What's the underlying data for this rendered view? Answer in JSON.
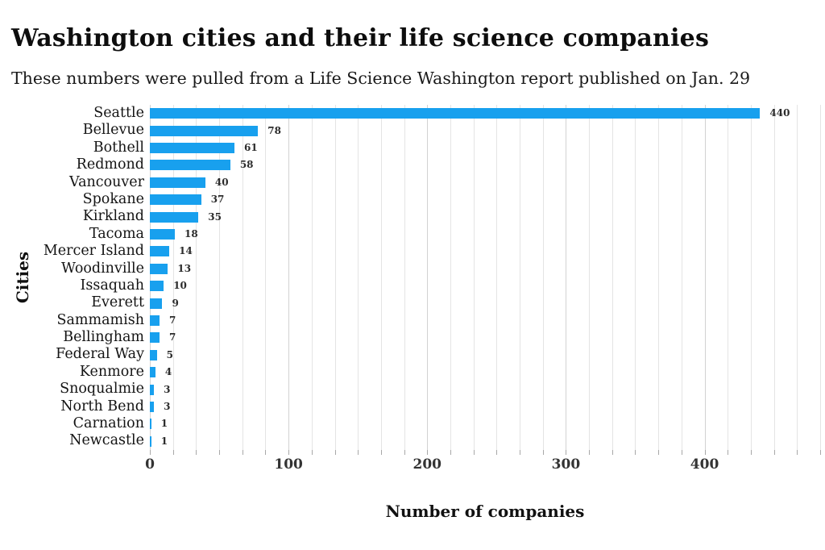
{
  "header": {
    "title": "Washington cities and their life science companies",
    "subtitle": "These numbers were pulled from a Life Science Washington report published on Jan. 29"
  },
  "chart_data": {
    "type": "bar",
    "orientation": "horizontal",
    "title": "Washington cities and their life science companies",
    "subtitle": "These numbers were pulled from a Life Science Washington report published on Jan. 29",
    "categories": [
      "Seattle",
      "Bellevue",
      "Bothell",
      "Redmond",
      "Vancouver",
      "Spokane",
      "Kirkland",
      "Tacoma",
      "Mercer Island",
      "Woodinville",
      "Issaquah",
      "Everett",
      "Sammamish",
      "Bellingham",
      "Federal Way",
      "Kenmore",
      "Snoqualmie",
      "North Bend",
      "Carnation",
      "Newcastle"
    ],
    "values": [
      440,
      78,
      61,
      58,
      40,
      37,
      35,
      18,
      14,
      13,
      10,
      9,
      7,
      7,
      5,
      4,
      3,
      3,
      1,
      1
    ],
    "xlabel": "Number of companies",
    "ylabel": "Cities",
    "x_ticks": [
      0,
      100,
      200,
      300,
      400
    ],
    "xlim": [
      0,
      483.33
    ],
    "minor_gridline_step": 16.667,
    "grid": "vertical",
    "legend": "none",
    "value_labels_shown": true,
    "colors": {
      "bar": "#18A0EE",
      "gridline_minor": "#e4e4e4",
      "gridline_major": "#d2d2d2",
      "tick": "#a8a8a8",
      "text": "#111111"
    }
  }
}
